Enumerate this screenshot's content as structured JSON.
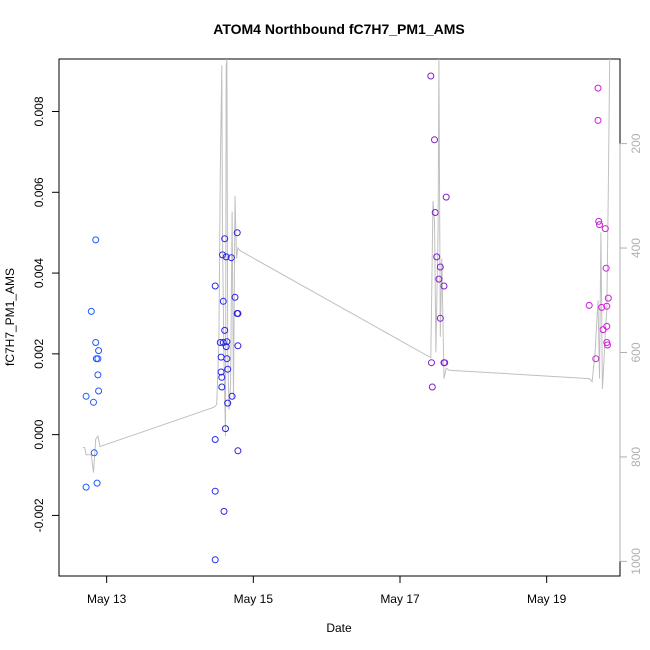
{
  "chart_data": {
    "type": "scatter",
    "title": "ATOM4 Northbound fC7H7_PM1_AMS",
    "xlabel": "Date",
    "ylabel": "fC7H7_PM1_AMS",
    "x_axis": {
      "ticks": [
        {
          "value": 13,
          "label": "May 13"
        },
        {
          "value": 15,
          "label": "May 15"
        },
        {
          "value": 17,
          "label": "May 17"
        },
        {
          "value": 19,
          "label": "May 19"
        }
      ],
      "range": [
        12.35,
        20.0
      ]
    },
    "y_axis": {
      "range": [
        -0.0035,
        0.0093
      ],
      "ticks": [
        {
          "value": -0.002,
          "label": "-0.002"
        },
        {
          "value": 0.0,
          "label": "0.000"
        },
        {
          "value": 0.002,
          "label": "0.002"
        },
        {
          "value": 0.004,
          "label": "0.004"
        },
        {
          "value": 0.006,
          "label": "0.006"
        },
        {
          "value": 0.008,
          "label": "0.008"
        }
      ]
    },
    "y2_axis": {
      "color": "#b0b0b0",
      "range": [
        1028,
        38
      ],
      "ticks": [
        {
          "value": 200,
          "label": "200"
        },
        {
          "value": 400,
          "label": "400"
        },
        {
          "value": 600,
          "label": "600"
        },
        {
          "value": 800,
          "label": "800"
        },
        {
          "value": 1000,
          "label": "1000"
        }
      ]
    },
    "point_color_scale": [
      "#1f5bff",
      "#2a1de0",
      "#7a1ec9",
      "#d21fd8"
    ],
    "series": [
      {
        "kind": "points",
        "points": [
          {
            "x": 12.72,
            "y": 0.00095,
            "c": 0.0
          },
          {
            "x": 12.72,
            "y": -0.0013,
            "c": 0.0
          },
          {
            "x": 12.79,
            "y": 0.00305,
            "c": 0.01
          },
          {
            "x": 12.82,
            "y": 0.0008,
            "c": 0.01
          },
          {
            "x": 12.83,
            "y": -0.00045,
            "c": 0.01
          },
          {
            "x": 12.85,
            "y": 0.00482,
            "c": 0.01
          },
          {
            "x": 12.85,
            "y": 0.00228,
            "c": 0.01
          },
          {
            "x": 12.86,
            "y": 0.00188,
            "c": 0.01
          },
          {
            "x": 12.87,
            "y": -0.0012,
            "c": 0.01
          },
          {
            "x": 12.88,
            "y": 0.00188,
            "c": 0.02
          },
          {
            "x": 12.88,
            "y": 0.00148,
            "c": 0.02
          },
          {
            "x": 12.89,
            "y": 0.00208,
            "c": 0.02
          },
          {
            "x": 12.89,
            "y": 0.00108,
            "c": 0.02
          },
          {
            "x": 14.48,
            "y": 0.00368,
            "c": 0.25
          },
          {
            "x": 14.48,
            "y": -0.00012,
            "c": 0.25
          },
          {
            "x": 14.48,
            "y": -0.0014,
            "c": 0.25
          },
          {
            "x": 14.48,
            "y": -0.0031,
            "c": 0.25
          },
          {
            "x": 14.55,
            "y": 0.00228,
            "c": 0.27
          },
          {
            "x": 14.56,
            "y": 0.00192,
            "c": 0.27
          },
          {
            "x": 14.56,
            "y": 0.00155,
            "c": 0.27
          },
          {
            "x": 14.57,
            "y": 0.00142,
            "c": 0.27
          },
          {
            "x": 14.57,
            "y": 0.00118,
            "c": 0.27
          },
          {
            "x": 14.58,
            "y": 0.00445,
            "c": 0.28
          },
          {
            "x": 14.59,
            "y": 0.0033,
            "c": 0.28
          },
          {
            "x": 14.59,
            "y": 0.00228,
            "c": 0.28
          },
          {
            "x": 14.6,
            "y": -0.0019,
            "c": 0.28
          },
          {
            "x": 14.61,
            "y": 0.00485,
            "c": 0.29
          },
          {
            "x": 14.61,
            "y": 0.00258,
            "c": 0.29
          },
          {
            "x": 14.62,
            "y": 0.00015,
            "c": 0.29
          },
          {
            "x": 14.63,
            "y": 0.0044,
            "c": 0.3
          },
          {
            "x": 14.63,
            "y": 0.00218,
            "c": 0.3
          },
          {
            "x": 14.64,
            "y": 0.0023,
            "c": 0.3
          },
          {
            "x": 14.64,
            "y": 0.00188,
            "c": 0.3
          },
          {
            "x": 14.65,
            "y": 0.00162,
            "c": 0.3
          },
          {
            "x": 14.65,
            "y": 0.00078,
            "c": 0.3
          },
          {
            "x": 14.7,
            "y": 0.00438,
            "c": 0.31
          },
          {
            "x": 14.71,
            "y": 0.00095,
            "c": 0.31
          },
          {
            "x": 14.75,
            "y": 0.0034,
            "c": 0.32
          },
          {
            "x": 14.78,
            "y": 0.003,
            "c": 0.32
          },
          {
            "x": 14.78,
            "y": 0.005,
            "c": 0.32
          },
          {
            "x": 14.79,
            "y": 0.003,
            "c": 0.32
          },
          {
            "x": 14.79,
            "y": 0.0022,
            "c": 0.32
          },
          {
            "x": 14.79,
            "y": -0.0004,
            "c": 0.32
          },
          {
            "x": 17.42,
            "y": 0.00888,
            "c": 0.68
          },
          {
            "x": 17.43,
            "y": 0.00178,
            "c": 0.68
          },
          {
            "x": 17.44,
            "y": 0.00118,
            "c": 0.68
          },
          {
            "x": 17.47,
            "y": 0.0073,
            "c": 0.69
          },
          {
            "x": 17.48,
            "y": 0.0055,
            "c": 0.69
          },
          {
            "x": 17.5,
            "y": 0.0044,
            "c": 0.69
          },
          {
            "x": 17.53,
            "y": 0.00385,
            "c": 0.7
          },
          {
            "x": 17.55,
            "y": 0.00415,
            "c": 0.7
          },
          {
            "x": 17.55,
            "y": 0.00288,
            "c": 0.7
          },
          {
            "x": 17.6,
            "y": 0.00368,
            "c": 0.71
          },
          {
            "x": 17.6,
            "y": 0.00178,
            "c": 0.71
          },
          {
            "x": 17.61,
            "y": 0.00178,
            "c": 0.71
          },
          {
            "x": 17.63,
            "y": 0.00588,
            "c": 0.71
          },
          {
            "x": 19.58,
            "y": 0.0032,
            "c": 0.96
          },
          {
            "x": 19.67,
            "y": 0.00188,
            "c": 0.97
          },
          {
            "x": 19.7,
            "y": 0.00858,
            "c": 0.98
          },
          {
            "x": 19.7,
            "y": 0.00778,
            "c": 0.98
          },
          {
            "x": 19.71,
            "y": 0.00528,
            "c": 0.98
          },
          {
            "x": 19.72,
            "y": 0.0052,
            "c": 0.98
          },
          {
            "x": 19.75,
            "y": 0.00315,
            "c": 0.98
          },
          {
            "x": 19.77,
            "y": 0.0026,
            "c": 0.99
          },
          {
            "x": 19.8,
            "y": 0.0051,
            "c": 0.99
          },
          {
            "x": 19.81,
            "y": 0.00412,
            "c": 0.99
          },
          {
            "x": 19.82,
            "y": 0.00318,
            "c": 1.0
          },
          {
            "x": 19.82,
            "y": 0.00268,
            "c": 1.0
          },
          {
            "x": 19.82,
            "y": 0.00228,
            "c": 1.0
          },
          {
            "x": 19.83,
            "y": 0.00222,
            "c": 1.0
          },
          {
            "x": 19.84,
            "y": 0.00338,
            "c": 1.0
          }
        ]
      },
      {
        "kind": "line",
        "axis": "y2",
        "color": "#c0c0c0",
        "points": [
          [
            12.68,
            782
          ],
          [
            12.7,
            782
          ],
          [
            12.72,
            796
          ],
          [
            12.76,
            796
          ],
          [
            12.79,
            796
          ],
          [
            12.82,
            830
          ],
          [
            12.85,
            766
          ],
          [
            12.88,
            760
          ],
          [
            12.91,
            780
          ],
          [
            14.46,
            705
          ],
          [
            14.5,
            700
          ],
          [
            14.53,
            580
          ],
          [
            14.55,
            250
          ],
          [
            14.57,
            50
          ],
          [
            14.58,
            380
          ],
          [
            14.6,
            620
          ],
          [
            14.62,
            760
          ],
          [
            14.63,
            50
          ],
          [
            14.64,
            38
          ],
          [
            14.65,
            600
          ],
          [
            14.67,
            710
          ],
          [
            14.69,
            660
          ],
          [
            14.71,
            330
          ],
          [
            14.73,
            690
          ],
          [
            14.75,
            300
          ],
          [
            14.77,
            420
          ],
          [
            14.79,
            400
          ],
          [
            14.82,
            405
          ],
          [
            17.42,
            610
          ],
          [
            17.45,
            310
          ],
          [
            17.47,
            350
          ],
          [
            17.49,
            600
          ],
          [
            17.52,
            360
          ],
          [
            17.53,
            38
          ],
          [
            17.55,
            570
          ],
          [
            17.57,
            420
          ],
          [
            17.6,
            650
          ],
          [
            17.63,
            630
          ],
          [
            17.67,
            634
          ],
          [
            19.58,
            650
          ],
          [
            19.62,
            656
          ],
          [
            19.66,
            600
          ],
          [
            19.7,
            500
          ],
          [
            19.72,
            650
          ],
          [
            19.74,
            370
          ],
          [
            19.76,
            670
          ],
          [
            19.78,
            620
          ],
          [
            19.8,
            560
          ],
          [
            19.82,
            520
          ],
          [
            19.84,
            290
          ],
          [
            19.86,
            38
          ]
        ]
      }
    ]
  }
}
